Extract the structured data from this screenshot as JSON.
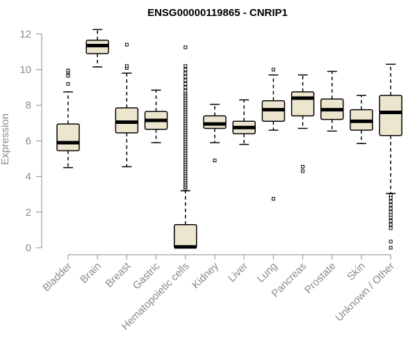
{
  "chart_data": {
    "type": "box",
    "title": "ENSG00000119865 - CNRIP1",
    "xlabel": "",
    "ylabel": "Expression",
    "ylim": [
      0,
      12
    ],
    "yticks": [
      0,
      2,
      4,
      6,
      8,
      10,
      12
    ],
    "colors": {
      "box_fill": "#ede6cf",
      "box_stroke": "#000000",
      "axis": "#8a8a8a",
      "label": "#8a8a8a"
    },
    "categories": [
      "Bladder",
      "Brain",
      "Breast",
      "Gastric",
      "Hematopoietic cells",
      "Kidney",
      "Liver",
      "Lung",
      "Pancreas",
      "Prostate",
      "Skin",
      "Unknown / Other"
    ],
    "boxes": [
      {
        "label": "Bladder",
        "whisker_low": 4.5,
        "q1": 5.45,
        "median": 5.9,
        "q3": 6.95,
        "whisker_high": 8.75,
        "outliers": [
          9.2,
          9.65,
          9.85,
          9.95
        ]
      },
      {
        "label": "Brain",
        "whisker_low": 10.15,
        "q1": 10.9,
        "median": 11.35,
        "q3": 11.65,
        "whisker_high": 12.25,
        "outliers": []
      },
      {
        "label": "Breast",
        "whisker_low": 4.55,
        "q1": 6.45,
        "median": 7.05,
        "q3": 7.85,
        "whisker_high": 9.8,
        "outliers": [
          10.1,
          10.2,
          11.4
        ]
      },
      {
        "label": "Gastric",
        "whisker_low": 5.9,
        "q1": 6.65,
        "median": 7.15,
        "q3": 7.65,
        "whisker_high": 8.85,
        "outliers": []
      },
      {
        "label": "Hematopoietic cells",
        "whisker_low": 0.0,
        "q1": 0.0,
        "median": 0.05,
        "q3": 1.3,
        "whisker_high": 3.2,
        "outliers": [
          3.3,
          3.4,
          3.5,
          3.6,
          3.7,
          3.8,
          3.9,
          4.0,
          4.1,
          4.2,
          4.3,
          4.4,
          4.5,
          4.6,
          4.7,
          4.8,
          4.9,
          5.0,
          5.1,
          5.2,
          5.3,
          5.4,
          5.5,
          5.6,
          5.7,
          5.8,
          5.9,
          6.0,
          6.1,
          6.2,
          6.3,
          6.4,
          6.5,
          6.6,
          6.7,
          6.8,
          6.9,
          7.0,
          7.1,
          7.2,
          7.3,
          7.4,
          7.5,
          7.6,
          7.7,
          7.8,
          7.9,
          8.0,
          8.1,
          8.2,
          8.3,
          8.4,
          8.5,
          8.6,
          8.7,
          8.8,
          9.0,
          9.2,
          9.4,
          9.6,
          9.8,
          10.0,
          10.2,
          11.25
        ]
      },
      {
        "label": "Kidney",
        "whisker_low": 5.9,
        "q1": 6.7,
        "median": 6.95,
        "q3": 7.4,
        "whisker_high": 8.05,
        "outliers": [
          4.9
        ]
      },
      {
        "label": "Liver",
        "whisker_low": 5.8,
        "q1": 6.4,
        "median": 6.75,
        "q3": 7.1,
        "whisker_high": 8.3,
        "outliers": []
      },
      {
        "label": "Lung",
        "whisker_low": 6.6,
        "q1": 7.1,
        "median": 7.75,
        "q3": 8.25,
        "whisker_high": 9.7,
        "outliers": [
          2.75,
          10.0
        ]
      },
      {
        "label": "Pancreas",
        "whisker_low": 6.7,
        "q1": 7.4,
        "median": 8.4,
        "q3": 8.75,
        "whisker_high": 9.7,
        "outliers": [
          4.3,
          4.55
        ]
      },
      {
        "label": "Prostate",
        "whisker_low": 6.55,
        "q1": 7.2,
        "median": 7.75,
        "q3": 8.35,
        "whisker_high": 9.9,
        "outliers": []
      },
      {
        "label": "Skin",
        "whisker_low": 5.85,
        "q1": 6.6,
        "median": 7.1,
        "q3": 7.75,
        "whisker_high": 8.55,
        "outliers": []
      },
      {
        "label": "Unknown / Other",
        "whisker_low": 3.05,
        "q1": 6.3,
        "median": 7.6,
        "q3": 8.55,
        "whisker_high": 10.3,
        "outliers": [
          0.0,
          0.35,
          1.1,
          1.3,
          1.5,
          1.7,
          1.85,
          2.0,
          2.2,
          2.4,
          2.6,
          2.8,
          2.95
        ]
      }
    ]
  }
}
